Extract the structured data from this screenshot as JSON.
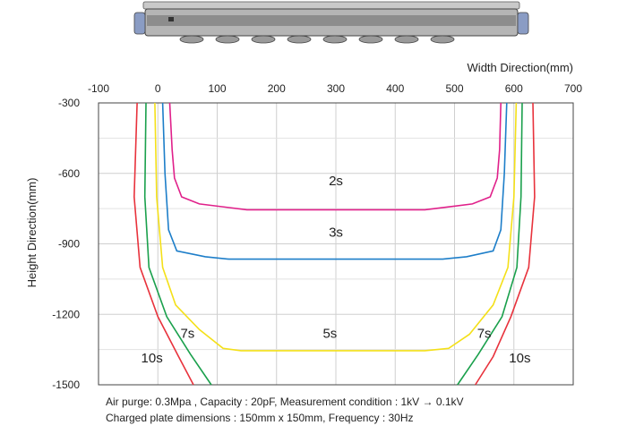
{
  "chart_data": {
    "type": "line",
    "xlabel": "Width Direction(mm)",
    "ylabel": "Height Direction(mm)",
    "xlim": [
      -100,
      700
    ],
    "ylim": [
      -1500,
      -300
    ],
    "xticks": [
      -100,
      0,
      100,
      200,
      300,
      400,
      500,
      600,
      700
    ],
    "yticks": [
      -300,
      -600,
      -900,
      -1200,
      -1500
    ],
    "grid": true,
    "series": [
      {
        "name": "2s",
        "color": "#e0208a",
        "label_at": [
          300,
          -650
        ],
        "points": [
          [
            20,
            -300
          ],
          [
            24,
            -500
          ],
          [
            28,
            -620
          ],
          [
            40,
            -700
          ],
          [
            70,
            -730
          ],
          [
            150,
            -755
          ],
          [
            300,
            -755
          ],
          [
            450,
            -755
          ],
          [
            530,
            -730
          ],
          [
            560,
            -700
          ],
          [
            572,
            -620
          ],
          [
            576,
            -500
          ],
          [
            578,
            -300
          ]
        ]
      },
      {
        "name": "3s",
        "color": "#1d7ec9",
        "label_at": [
          300,
          -870
        ],
        "points": [
          [
            8,
            -300
          ],
          [
            12,
            -600
          ],
          [
            18,
            -840
          ],
          [
            32,
            -930
          ],
          [
            80,
            -955
          ],
          [
            120,
            -965
          ],
          [
            300,
            -965
          ],
          [
            480,
            -965
          ],
          [
            520,
            -955
          ],
          [
            565,
            -930
          ],
          [
            578,
            -840
          ],
          [
            584,
            -600
          ],
          [
            588,
            -300
          ]
        ]
      },
      {
        "name": "5s",
        "color": "#f4e019",
        "label_at": [
          290,
          -1300
        ],
        "points": [
          [
            -5,
            -300
          ],
          [
            -2,
            -700
          ],
          [
            8,
            -1000
          ],
          [
            30,
            -1160
          ],
          [
            70,
            -1265
          ],
          [
            110,
            -1345
          ],
          [
            140,
            -1355
          ],
          [
            300,
            -1355
          ],
          [
            450,
            -1355
          ],
          [
            490,
            -1345
          ],
          [
            525,
            -1285
          ],
          [
            565,
            -1160
          ],
          [
            590,
            -1000
          ],
          [
            600,
            -700
          ],
          [
            604,
            -300
          ]
        ]
      },
      {
        "name": "7s",
        "color": "#1aa04c",
        "label_labels": [
          [
            "7s",
            50,
            -1300
          ],
          [
            "7s",
            550,
            -1300
          ]
        ],
        "left": [
          [
            -20,
            -300
          ],
          [
            -22,
            -700
          ],
          [
            -15,
            -1000
          ],
          [
            15,
            -1210
          ],
          [
            55,
            -1370
          ],
          [
            90,
            -1500
          ]
        ],
        "right": [
          [
            505,
            -1500
          ],
          [
            540,
            -1370
          ],
          [
            580,
            -1210
          ],
          [
            605,
            -1000
          ],
          [
            612,
            -700
          ],
          [
            614,
            -300
          ]
        ]
      },
      {
        "name": "10s",
        "color": "#e8323c",
        "label_labels": [
          [
            "10s",
            -10,
            -1405
          ],
          [
            "10s",
            610,
            -1405
          ]
        ],
        "left": [
          [
            -35,
            -300
          ],
          [
            -40,
            -700
          ],
          [
            -30,
            -1000
          ],
          [
            0,
            -1210
          ],
          [
            35,
            -1380
          ],
          [
            60,
            -1500
          ]
        ],
        "right": [
          [
            535,
            -1500
          ],
          [
            565,
            -1380
          ],
          [
            595,
            -1210
          ],
          [
            625,
            -1000
          ],
          [
            635,
            -700
          ],
          [
            632,
            -300
          ]
        ]
      }
    ],
    "notes": [
      "Air purge: 0.3Mpa , Capacity : 20pF, Measurement condition : 1kV → 0.1kV",
      "Charged plate dimensions : 150mm x 150mm, Frequency : 30Hz"
    ]
  }
}
